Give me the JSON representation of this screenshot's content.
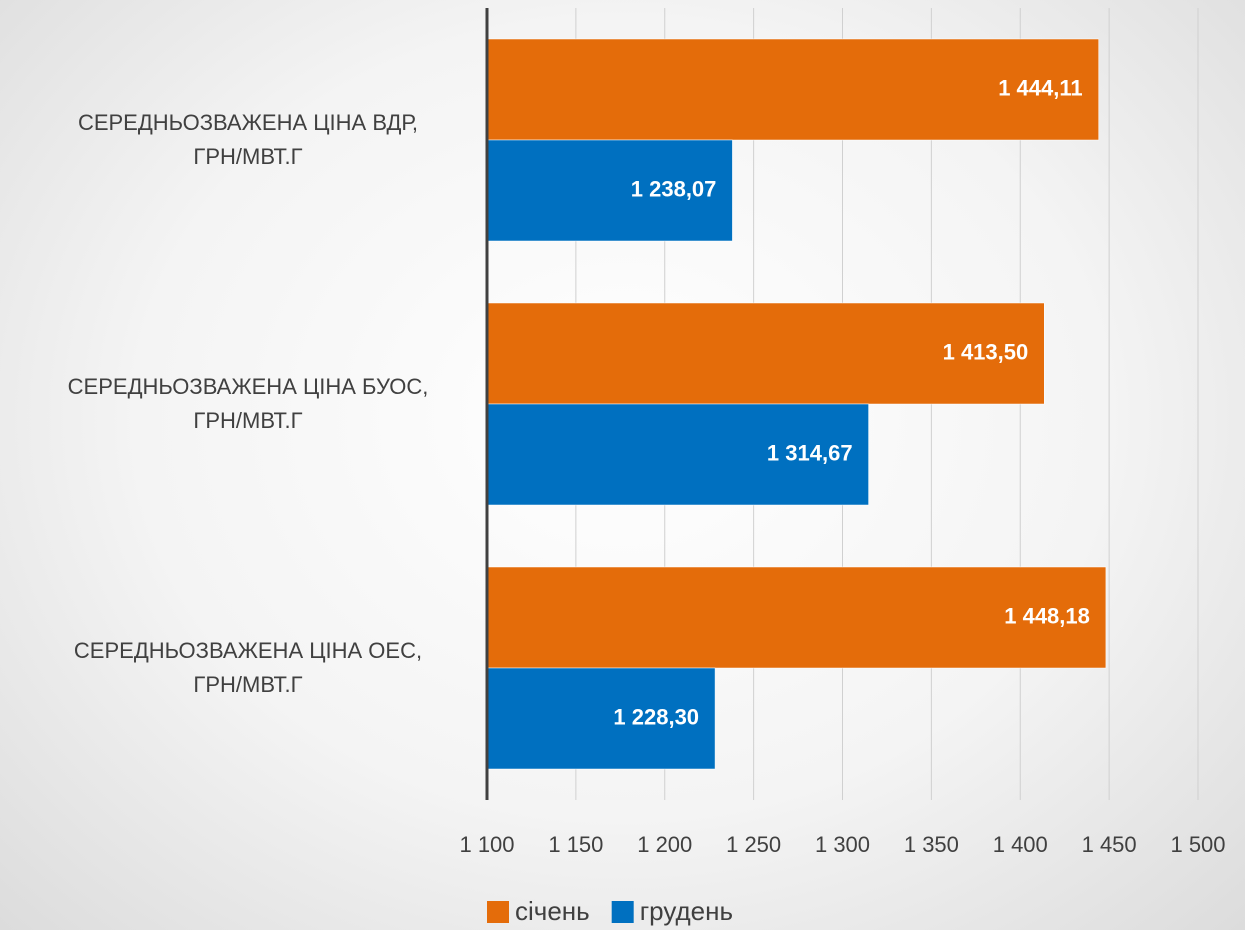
{
  "chart_data": {
    "type": "barh",
    "categories": [
      "СЕРЕДНЬОЗВАЖЕНА ЦІНА ВДР,\nГРН/МВТ.Г",
      "СЕРЕДНЬОЗВАЖЕНА ЦІНА БУОС,\nГРН/МВТ.Г",
      "СЕРЕДНЬОЗВАЖЕНА ЦІНА ОЕС,\nГРН/МВТ.Г"
    ],
    "series": [
      {
        "name": "січень",
        "color": "#e46c0a",
        "values": [
          1444.11,
          1413.5,
          1448.18
        ],
        "value_labels": [
          "1 444,11",
          "1 413,50",
          "1 448,18"
        ]
      },
      {
        "name": "грудень",
        "color": "#0070c0",
        "values": [
          1238.07,
          1314.67,
          1228.3
        ],
        "value_labels": [
          "1 238,07",
          "1 314,67",
          "1 228,30"
        ]
      }
    ],
    "xlim": [
      1100,
      1500
    ],
    "xticks": [
      {
        "value": 1100,
        "label": "1 100"
      },
      {
        "value": 1150,
        "label": "1 150"
      },
      {
        "value": 1200,
        "label": "1 200"
      },
      {
        "value": 1250,
        "label": "1 250"
      },
      {
        "value": 1300,
        "label": "1 300"
      },
      {
        "value": 1350,
        "label": "1 350"
      },
      {
        "value": 1400,
        "label": "1 400"
      },
      {
        "value": 1450,
        "label": "1 450"
      },
      {
        "value": 1500,
        "label": "1 500"
      }
    ],
    "grid": true,
    "legend": "bottom"
  }
}
